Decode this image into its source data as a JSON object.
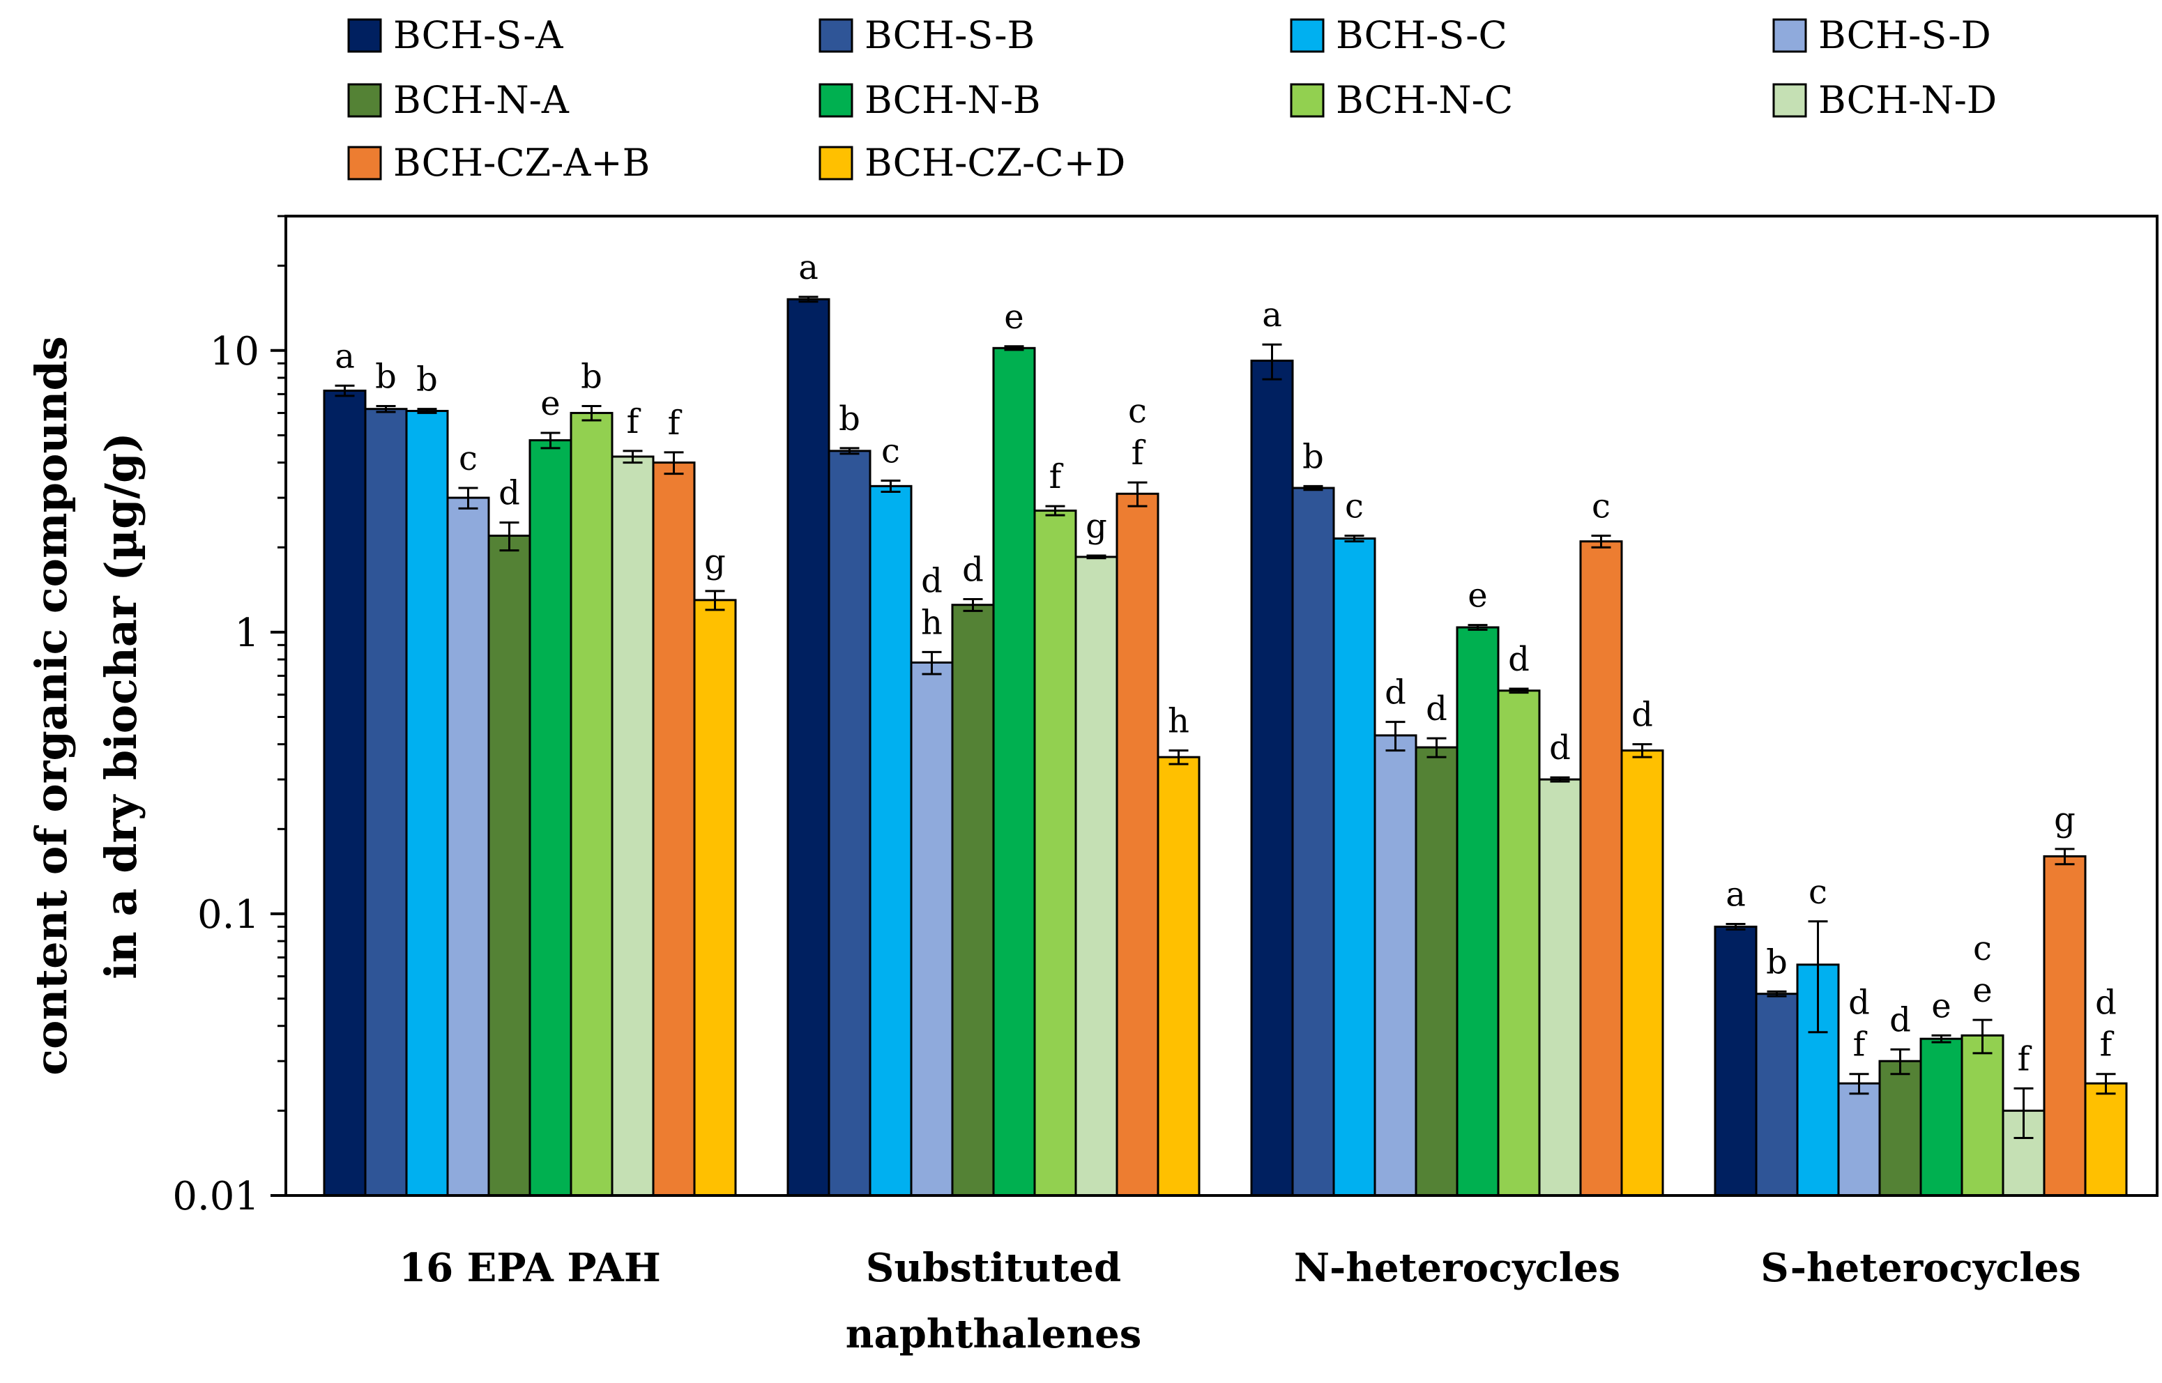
{
  "chart_data": {
    "type": "bar",
    "yscale": "log",
    "ylim": [
      0.01,
      30
    ],
    "yticks": [
      "10",
      "1",
      "0.1",
      "0.01"
    ],
    "ylabel_lines": [
      "content of organic compounds",
      "in a dry biochar (µg/g)"
    ],
    "xlabel": "",
    "grid": false,
    "legend_position": "top",
    "categories": [
      {
        "lines": [
          "16 EPA PAH"
        ]
      },
      {
        "lines": [
          "Substituted",
          "naphthalenes"
        ]
      },
      {
        "lines": [
          "N-heterocycles"
        ]
      },
      {
        "lines": [
          "S-heterocycles"
        ]
      }
    ],
    "series": [
      {
        "name": "BCH-S-A",
        "color": "#002060",
        "values": [
          7.2,
          15.2,
          9.2,
          0.09
        ],
        "errors": [
          0.3,
          0.3,
          1.3,
          0.002
        ],
        "labels": [
          [
            "a"
          ],
          [
            "a"
          ],
          [
            "a"
          ],
          [
            "a"
          ]
        ]
      },
      {
        "name": "BCH-S-B",
        "color": "#2F5597",
        "values": [
          6.2,
          4.4,
          3.25,
          0.052
        ],
        "errors": [
          0.15,
          0.1,
          0.05,
          0.001
        ],
        "labels": [
          [
            "b"
          ],
          [
            "b"
          ],
          [
            "b"
          ],
          [
            "b"
          ]
        ]
      },
      {
        "name": "BCH-S-C",
        "color": "#00B0F0",
        "values": [
          6.1,
          3.3,
          2.15,
          0.066
        ],
        "errors": [
          0.1,
          0.15,
          0.05,
          0.028
        ],
        "labels": [
          [
            "b"
          ],
          [
            "c"
          ],
          [
            "c"
          ],
          [
            "c"
          ]
        ]
      },
      {
        "name": "BCH-S-D",
        "color": "#8FAADC",
        "values": [
          3.0,
          0.78,
          0.43,
          0.025
        ],
        "errors": [
          0.25,
          0.07,
          0.05,
          0.002
        ],
        "labels": [
          [
            "c"
          ],
          [
            "d",
            "h"
          ],
          [
            "d"
          ],
          [
            "d",
            "f"
          ]
        ]
      },
      {
        "name": "BCH-N-A",
        "color": "#548235",
        "values": [
          2.2,
          1.25,
          0.39,
          0.03
        ],
        "errors": [
          0.25,
          0.06,
          0.03,
          0.003
        ],
        "labels": [
          [
            "d"
          ],
          [
            "d"
          ],
          [
            "d"
          ],
          [
            "d"
          ]
        ]
      },
      {
        "name": "BCH-N-B",
        "color": "#00B050",
        "values": [
          4.8,
          10.2,
          1.04,
          0.036
        ],
        "errors": [
          0.3,
          0.15,
          0.02,
          0.001
        ],
        "labels": [
          [
            "e"
          ],
          [
            "e"
          ],
          [
            "e"
          ],
          [
            "e"
          ]
        ]
      },
      {
        "name": "BCH-N-C",
        "color": "#92D050",
        "values": [
          6.0,
          2.7,
          0.62,
          0.037
        ],
        "errors": [
          0.35,
          0.1,
          0.01,
          0.005
        ],
        "labels": [
          [
            "b"
          ],
          [
            "f"
          ],
          [
            "d"
          ],
          [
            "c",
            "e"
          ]
        ]
      },
      {
        "name": "BCH-N-D",
        "color": "#C5E0B4",
        "values": [
          4.2,
          1.85,
          0.3,
          0.02
        ],
        "errors": [
          0.2,
          0.02,
          0.005,
          0.004
        ],
        "labels": [
          [
            "f"
          ],
          [
            "g"
          ],
          [
            "d"
          ],
          [
            "f"
          ]
        ]
      },
      {
        "name": "BCH-CZ-A+B",
        "color": "#ED7D31",
        "values": [
          4.0,
          3.1,
          2.1,
          0.16
        ],
        "errors": [
          0.35,
          0.3,
          0.1,
          0.01
        ],
        "labels": [
          [
            "f"
          ],
          [
            "c",
            "f"
          ],
          [
            "c"
          ],
          [
            "g"
          ]
        ]
      },
      {
        "name": "BCH-CZ-C+D",
        "color": "#FFC000",
        "values": [
          1.3,
          0.36,
          0.38,
          0.025
        ],
        "errors": [
          0.1,
          0.02,
          0.02,
          0.002
        ],
        "labels": [
          [
            "g"
          ],
          [
            "h"
          ],
          [
            "d"
          ],
          [
            "d",
            "f"
          ]
        ]
      }
    ]
  }
}
